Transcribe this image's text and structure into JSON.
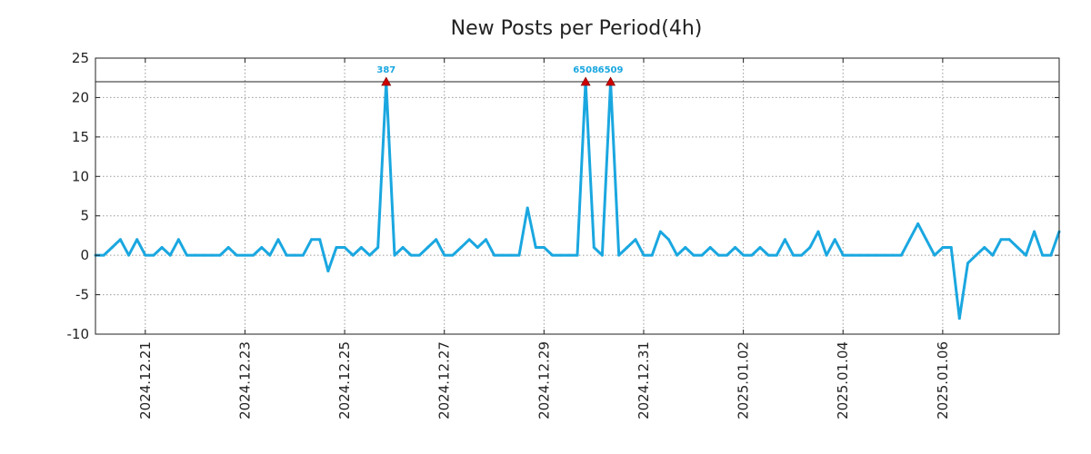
{
  "chart_data": {
    "type": "line",
    "title": "New Posts per Period(4h)",
    "xlabel": "",
    "ylabel": "",
    "ylim": [
      -10,
      25
    ],
    "yticks": [
      25,
      20,
      15,
      10,
      5,
      0,
      -5,
      -10
    ],
    "ytick_labels": [
      "25",
      "20",
      "15",
      "10",
      "5",
      "0",
      "-5",
      "-10"
    ],
    "x_start": "2024.12.20 12:00",
    "x_step_days": 0.1667,
    "xticks_days": [
      1,
      3,
      5,
      7,
      9,
      11,
      13,
      15,
      17
    ],
    "xtick_labels": [
      "2024.12.21",
      "2024.12.23",
      "2024.12.25",
      "2024.12.27",
      "2024.12.29",
      "2024.12.31",
      "2025.01.02",
      "2025.01.04",
      "2025.01.06"
    ],
    "reference_line": 22,
    "grid": true,
    "series": [
      {
        "name": "New Posts",
        "color": "#1aa7e0",
        "values": [
          0,
          0,
          1,
          2,
          0,
          2,
          0,
          0,
          1,
          0,
          2,
          0,
          0,
          0,
          0,
          0,
          1,
          0,
          0,
          0,
          1,
          0,
          2,
          0,
          0,
          0,
          2,
          2,
          -2,
          1,
          1,
          0,
          1,
          0,
          1,
          22,
          0,
          1,
          0,
          0,
          1,
          2,
          0,
          0,
          1,
          2,
          1,
          2,
          0,
          0,
          0,
          0,
          6,
          1,
          1,
          0,
          0,
          0,
          0,
          22,
          1,
          0,
          22,
          0,
          1,
          2,
          0,
          0,
          3,
          2,
          0,
          1,
          0,
          0,
          1,
          0,
          0,
          1,
          0,
          0,
          1,
          0,
          0,
          2,
          0,
          0,
          1,
          3,
          0,
          2,
          0,
          0,
          0,
          0,
          0,
          0,
          0,
          0,
          2,
          4,
          2,
          0,
          1,
          1,
          -8,
          -1,
          0,
          1,
          0,
          2,
          2,
          1,
          0,
          3,
          0,
          0,
          3
        ]
      }
    ],
    "annotations": [
      {
        "index": 35,
        "label": "387",
        "marker_color": "#cc0000"
      },
      {
        "index": 59,
        "label": "6508",
        "marker_color": "#cc0000"
      },
      {
        "index": 62,
        "label": "6509",
        "marker_color": "#cc0000"
      }
    ]
  }
}
